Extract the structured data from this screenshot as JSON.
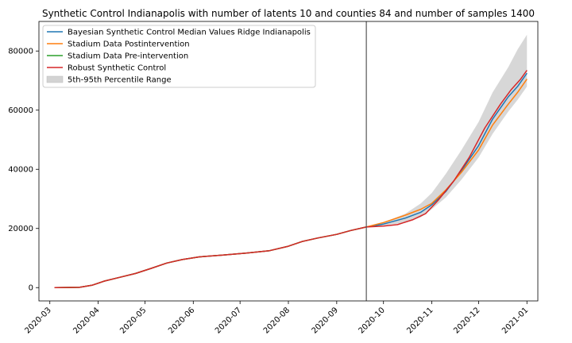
{
  "chart_data": {
    "type": "line",
    "title": "Synthetic Control Indianapolis with number of latents 10 and counties 84 and number of samples 1400",
    "xlabel": "",
    "ylabel": "",
    "x_range": [
      "2020-02-23",
      "2021-01-08"
    ],
    "ylim": [
      -4500,
      90000
    ],
    "x_ticks": [
      "2020-03",
      "2020-04",
      "2020-05",
      "2020-06",
      "2020-07",
      "2020-08",
      "2020-09",
      "2020-10",
      "2020-11",
      "2020-12",
      "2021-01"
    ],
    "x_tick_dates": [
      "2020-03-01",
      "2020-04-01",
      "2020-05-01",
      "2020-06-01",
      "2020-07-01",
      "2020-08-01",
      "2020-09-01",
      "2020-10-01",
      "2020-11-01",
      "2020-12-01",
      "2021-01-01"
    ],
    "y_ticks": [
      0,
      20000,
      40000,
      60000,
      80000
    ],
    "y_tick_labels": [
      "0",
      "20000",
      "40000",
      "60000",
      "80000"
    ],
    "grid": false,
    "legend_position": "top-left",
    "intervention_date": "2020-09-20",
    "series": [
      {
        "name": "Stadium Data Pre-intervention",
        "color": "#2ca02c",
        "x": [
          "2020-03-04",
          "2020-03-20",
          "2020-03-28",
          "2020-04-05",
          "2020-04-15",
          "2020-04-25",
          "2020-05-05",
          "2020-05-15",
          "2020-05-25",
          "2020-06-05",
          "2020-06-20",
          "2020-07-05",
          "2020-07-20",
          "2020-08-01",
          "2020-08-10",
          "2020-08-20",
          "2020-09-01",
          "2020-09-10",
          "2020-09-20"
        ],
        "y": [
          0,
          100,
          800,
          2200,
          3500,
          4800,
          6500,
          8300,
          9500,
          10400,
          11000,
          11700,
          12500,
          14000,
          15600,
          16800,
          18000,
          19300,
          20500
        ]
      },
      {
        "name": "Bayesian Synthetic Control Median Values Ridge Indianapolis",
        "color": "#1f77b4",
        "x": [
          "2020-03-04",
          "2020-03-20",
          "2020-03-28",
          "2020-04-05",
          "2020-04-15",
          "2020-04-25",
          "2020-05-05",
          "2020-05-15",
          "2020-05-25",
          "2020-06-05",
          "2020-06-20",
          "2020-07-05",
          "2020-07-20",
          "2020-08-01",
          "2020-08-10",
          "2020-08-20",
          "2020-09-01",
          "2020-09-10",
          "2020-09-20",
          "2020-10-01",
          "2020-10-15",
          "2020-10-25",
          "2020-11-01",
          "2020-11-10",
          "2020-11-20",
          "2020-12-01",
          "2020-12-10",
          "2020-12-20",
          "2020-12-26",
          "2021-01-01"
        ],
        "y": [
          0,
          100,
          800,
          2200,
          3500,
          4800,
          6500,
          8300,
          9500,
          10400,
          11000,
          11700,
          12500,
          14000,
          15600,
          16800,
          18000,
          19300,
          20500,
          21500,
          23500,
          25500,
          28000,
          32500,
          39500,
          48000,
          57000,
          64500,
          68000,
          72500
        ]
      },
      {
        "name": "Stadium Data Postintervention",
        "color": "#ff7f0e",
        "x": [
          "2020-03-04",
          "2020-03-20",
          "2020-03-28",
          "2020-04-05",
          "2020-04-15",
          "2020-04-25",
          "2020-05-05",
          "2020-05-15",
          "2020-05-25",
          "2020-06-05",
          "2020-06-20",
          "2020-07-05",
          "2020-07-20",
          "2020-08-01",
          "2020-08-10",
          "2020-08-20",
          "2020-09-01",
          "2020-09-10",
          "2020-09-20",
          "2020-10-01",
          "2020-10-15",
          "2020-10-25",
          "2020-11-01",
          "2020-11-10",
          "2020-11-20",
          "2020-12-01",
          "2020-12-10",
          "2020-12-20",
          "2020-12-26",
          "2021-01-01"
        ],
        "y": [
          0,
          100,
          800,
          2200,
          3500,
          4800,
          6500,
          8300,
          9500,
          10400,
          11000,
          11700,
          12500,
          14000,
          15600,
          16800,
          18000,
          19300,
          20500,
          22000,
          24500,
          26500,
          28500,
          33000,
          39000,
          46500,
          55000,
          62000,
          66000,
          70500
        ]
      },
      {
        "name": "Robust Synthetic Control",
        "color": "#d62728",
        "x": [
          "2020-03-04",
          "2020-03-20",
          "2020-03-28",
          "2020-04-05",
          "2020-04-15",
          "2020-04-25",
          "2020-05-05",
          "2020-05-15",
          "2020-05-25",
          "2020-06-05",
          "2020-06-20",
          "2020-07-05",
          "2020-07-20",
          "2020-08-01",
          "2020-08-10",
          "2020-08-20",
          "2020-09-01",
          "2020-09-10",
          "2020-09-20",
          "2020-10-01",
          "2020-10-10",
          "2020-10-20",
          "2020-10-28",
          "2020-11-05",
          "2020-11-15",
          "2020-11-25",
          "2020-12-05",
          "2020-12-15",
          "2020-12-22",
          "2020-12-28",
          "2021-01-01"
        ],
        "y": [
          0,
          100,
          800,
          2200,
          3500,
          4800,
          6500,
          8300,
          9500,
          10400,
          11000,
          11700,
          12500,
          14000,
          15600,
          16800,
          18000,
          19300,
          20500,
          20800,
          21300,
          23000,
          25000,
          29500,
          36000,
          44000,
          54000,
          62000,
          67000,
          70500,
          73500
        ]
      }
    ],
    "band": {
      "name": "5th-95th Percentile Range",
      "color": "#d3d3d3",
      "x": [
        "2020-09-20",
        "2020-10-01",
        "2020-10-15",
        "2020-10-25",
        "2020-11-01",
        "2020-11-10",
        "2020-11-20",
        "2020-12-01",
        "2020-12-10",
        "2020-12-20",
        "2020-12-26",
        "2021-01-01"
      ],
      "low": [
        20500,
        21000,
        22000,
        23800,
        26500,
        30500,
        36500,
        44000,
        52000,
        59500,
        63500,
        68000
      ],
      "high": [
        20500,
        22000,
        25000,
        28500,
        32000,
        38500,
        46500,
        56000,
        66000,
        74500,
        80500,
        85500
      ]
    },
    "legend_order": [
      "Bayesian Synthetic Control Median Values Ridge Indianapolis",
      "Stadium Data Postintervention",
      "Stadium Data Pre-intervention",
      "Robust Synthetic Control",
      "5th-95th Percentile Range"
    ]
  }
}
